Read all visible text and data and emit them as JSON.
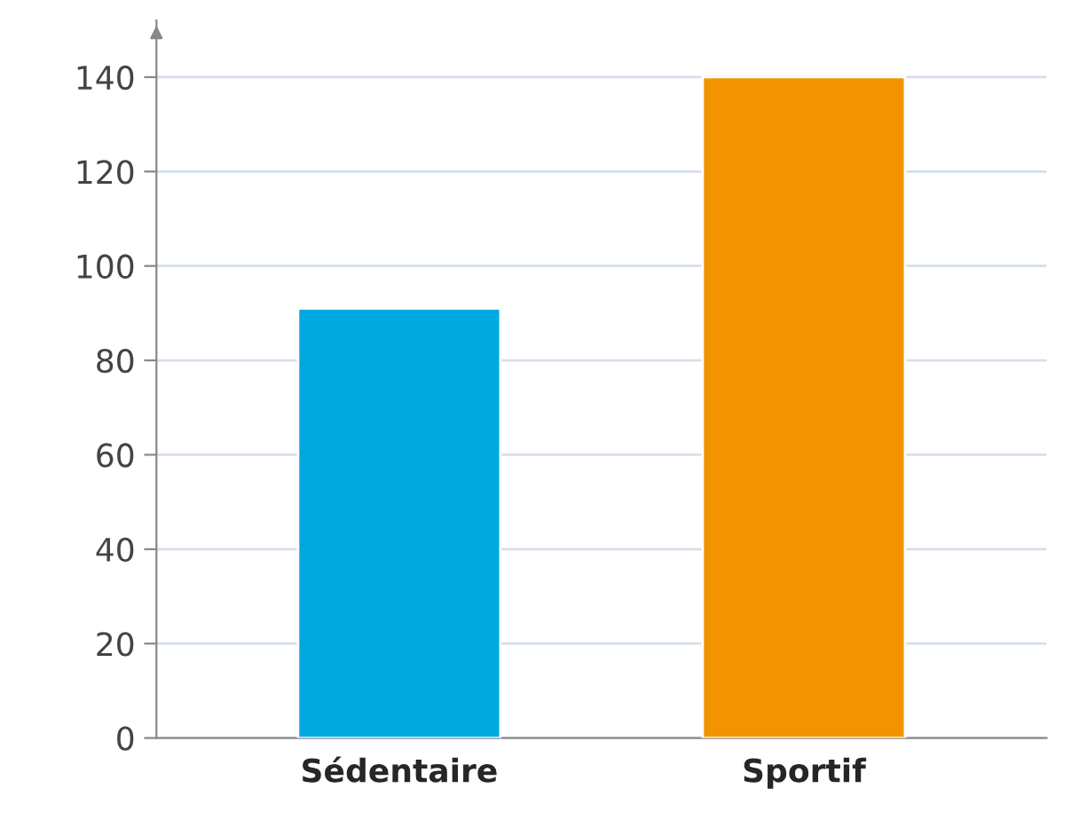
{
  "chart_data": {
    "type": "bar",
    "categories": [
      "Sédentaire",
      "Sportif"
    ],
    "values": [
      91,
      140
    ],
    "colors": [
      "#00a8e0",
      "#f29400"
    ],
    "ylim": [
      0,
      152
    ],
    "yticks": [
      0,
      20,
      40,
      60,
      80,
      100,
      120,
      140
    ],
    "grid": "y"
  }
}
